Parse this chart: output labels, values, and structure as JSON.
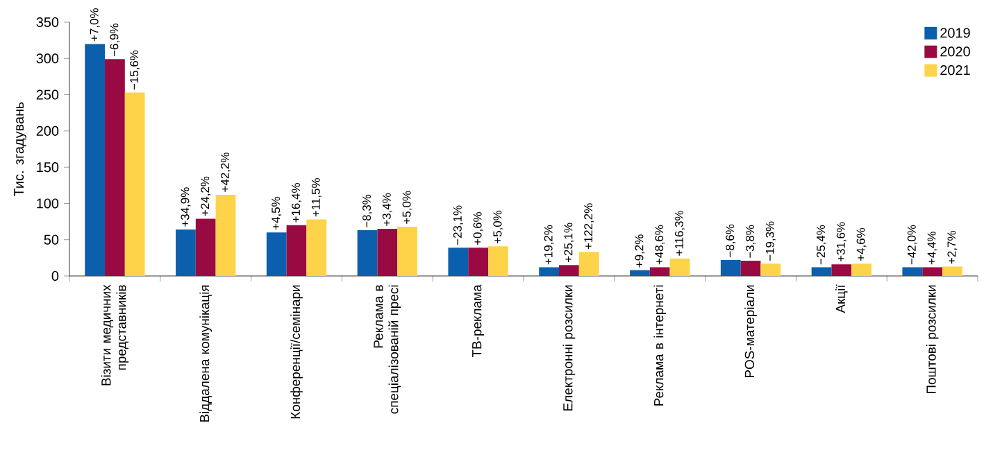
{
  "chart_data": {
    "type": "bar",
    "ylabel": "Тис. згадувань",
    "categories": [
      "Візити медичних представників",
      "Віддалена комунікація",
      "Конференції/семінари",
      "Реклама в спеціалізованій пресі",
      "ТВ-реклама",
      "Електронні розсилки",
      "Реклама в інтернеті",
      "POS-матеріали",
      "Акції",
      "Поштові розсилки"
    ],
    "series": [
      {
        "name": "2019",
        "color": "#0b5fad",
        "values": [
          320,
          64,
          60,
          63,
          39,
          12,
          8,
          22,
          12,
          12
        ]
      },
      {
        "name": "2020",
        "color": "#990a43",
        "values": [
          299,
          79,
          70,
          65,
          39,
          15,
          12,
          21,
          16,
          12
        ]
      },
      {
        "name": "2021",
        "color": "#fdd34a",
        "values": [
          253,
          112,
          78,
          68,
          41,
          33,
          24,
          17,
          17,
          13
        ]
      }
    ],
    "annotations": [
      "+7,0%",
      "−6,9%",
      "−15,6%",
      "+34,9%",
      "+24,2%",
      "+42,2%",
      "+4,5%",
      "+16,4%",
      "+11,5%",
      "−8,3%",
      "+3,4%",
      "+5,0%",
      "−23,1%",
      "+0,6%",
      "+5,0%",
      "+19,2%",
      "+25,1%",
      "+122,2%",
      "+9,2%",
      "+48,6%",
      "+116,3%",
      "−8,6%",
      "−3,8%",
      "−19,3%",
      "−25,4%",
      "+31,6%",
      "+4,6%",
      "−42,0%",
      "+4,4%",
      "+2,7%"
    ],
    "ylim": [
      0,
      350
    ],
    "yticks": [
      0,
      50,
      100,
      150,
      200,
      250,
      300,
      350
    ],
    "legend": "top right",
    "grid": false
  }
}
